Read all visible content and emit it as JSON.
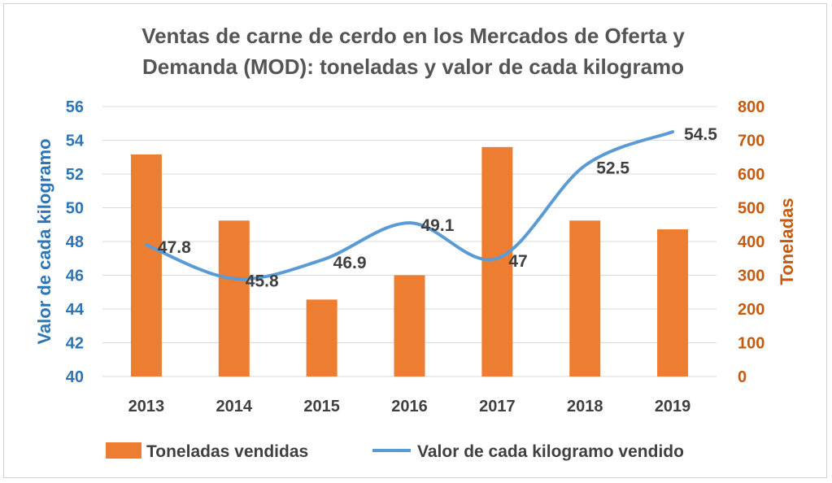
{
  "chart_data": {
    "type": "bar+line",
    "title_line1": "Ventas de carne de cerdo en los Mercados de Oferta y",
    "title_line2": "Demanda (MOD): toneladas y valor de cada kilogramo",
    "categories": [
      "2013",
      "2014",
      "2015",
      "2016",
      "2017",
      "2018",
      "2019"
    ],
    "series": [
      {
        "name": "Toneladas vendidas",
        "type": "bar",
        "axis": "right",
        "color": "#ed7d31",
        "values": [
          658,
          462,
          228,
          300,
          680,
          462,
          436
        ]
      },
      {
        "name": "Valor de cada kilogramo vendido",
        "type": "line",
        "axis": "left",
        "color": "#5b9bd5",
        "smooth": true,
        "values": [
          47.8,
          45.8,
          46.9,
          49.1,
          47,
          52.5,
          54.5
        ],
        "labels": [
          "47.8",
          "45.8",
          "46.9",
          "49.1",
          "47",
          "52.5",
          "54.5"
        ]
      }
    ],
    "y_left": {
      "label": "Valor de cada kilogramo",
      "ylim": [
        40,
        56
      ],
      "ticks": [
        "40",
        "42",
        "44",
        "46",
        "48",
        "50",
        "52",
        "54",
        "56"
      ],
      "color": "#2e75b6"
    },
    "y_right": {
      "label": "Toneladas",
      "ylim": [
        0,
        800
      ],
      "ticks": [
        "0",
        "100",
        "200",
        "300",
        "400",
        "500",
        "600",
        "700",
        "800"
      ],
      "color": "#c55a11"
    },
    "grid": true,
    "legend_position": "bottom"
  }
}
